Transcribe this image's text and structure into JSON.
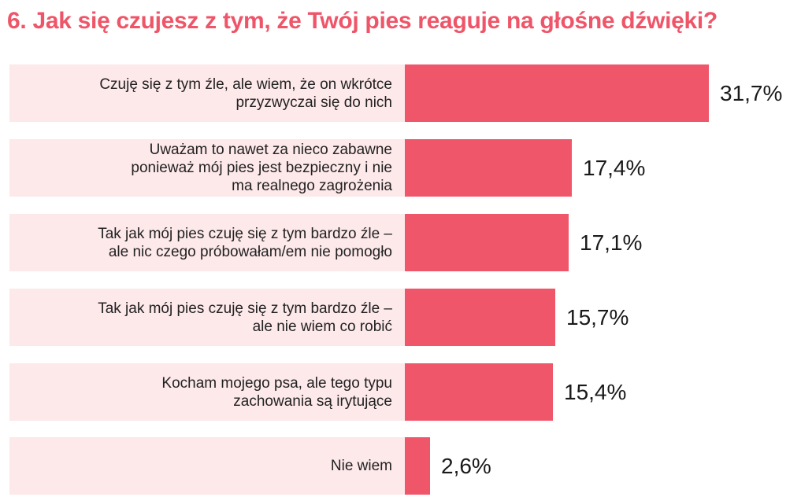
{
  "chart_data": {
    "type": "bar",
    "orientation": "horizontal",
    "title": "6. Jak się czujesz z tym, że Twój pies reaguje na głośne dźwięki?",
    "categories": [
      "Czuję się z tym źle, ale wiem, że on wkrótce\nprzyzwyczai się do nich",
      "Uważam to nawet za nieco zabawne\nponieważ mój pies jest bezpieczny i nie\nma realnego zagrożenia",
      "Tak jak mój pies czuję się z tym bardzo źle –\nale nic czego próbowałam/em nie pomogło",
      "Tak jak mój pies czuję się z tym bardzo źle –\nale nie wiem co robić",
      "Kocham mojego psa, ale tego typu\nzachowania są irytujące",
      "Nie wiem"
    ],
    "values": [
      31.7,
      17.4,
      17.1,
      15.7,
      15.4,
      2.6
    ],
    "value_labels": [
      "31,7%",
      "17,4%",
      "17,1%",
      "15,7%",
      "15,4%",
      "2,6%"
    ],
    "xlim": [
      0,
      31.7
    ],
    "xlabel": "",
    "ylabel": "",
    "grid": false,
    "legend": "none",
    "colors": {
      "title": "#ef5568",
      "bar": "#f0566a",
      "row_background": "#fde8ea"
    }
  }
}
